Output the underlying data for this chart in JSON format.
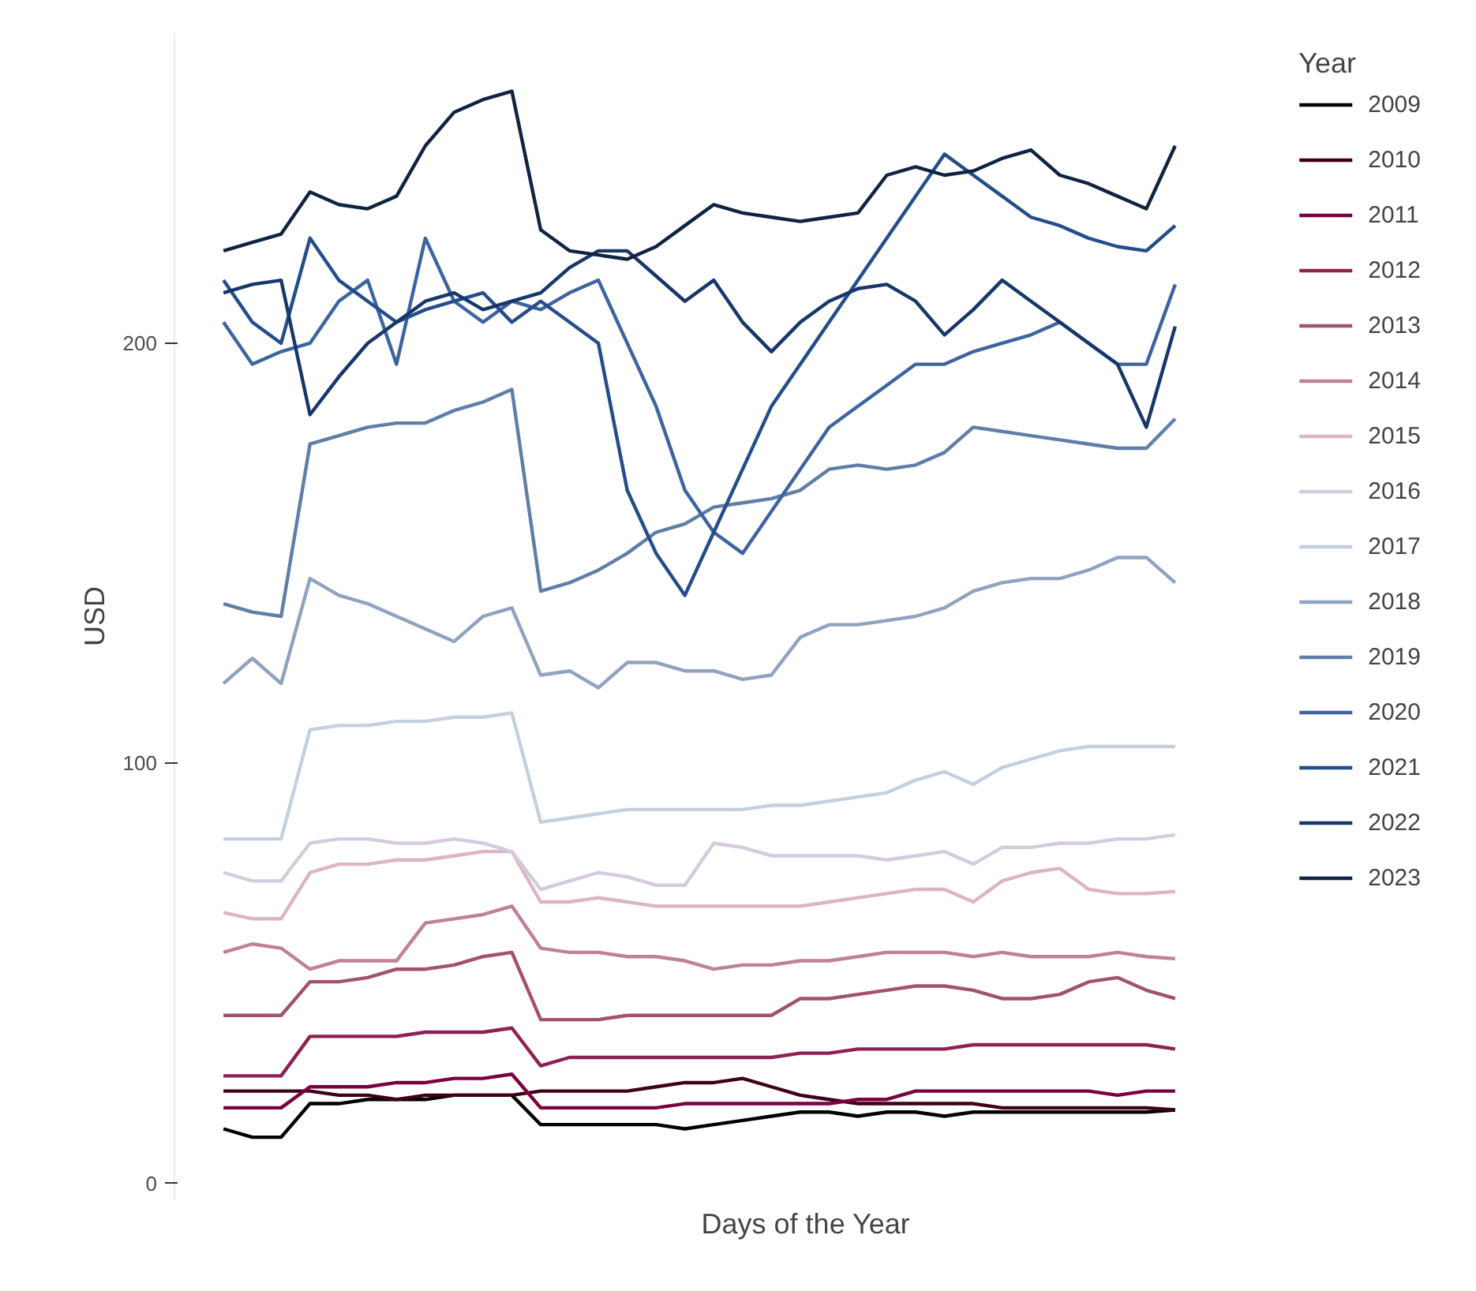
{
  "chart_data": {
    "type": "line",
    "xlabel": "Days of the Year",
    "ylabel": "USD",
    "legend_title": "Year",
    "legend": "right",
    "grid": false,
    "categories": [
      null,
      null,
      null,
      null,
      null,
      null,
      null,
      null,
      null,
      null,
      null,
      null,
      null,
      null,
      null,
      null,
      null,
      null,
      null,
      null,
      null,
      null,
      null,
      null,
      null,
      null,
      null,
      null,
      null,
      null,
      null,
      null,
      null,
      null
    ],
    "ylim": [
      -4,
      274
    ],
    "yticks": [
      0,
      100,
      200
    ],
    "series": [
      {
        "name": "2009",
        "color": "#000000",
        "values": [
          13,
          11,
          11,
          19,
          19,
          20,
          20,
          20,
          21,
          21,
          21,
          14,
          14,
          14,
          14,
          14,
          13,
          14,
          15,
          16,
          17,
          17,
          16,
          17,
          17,
          16,
          17,
          17,
          17,
          17,
          17,
          17,
          17,
          17.5
        ]
      },
      {
        "name": "2010",
        "color": "#3d0018",
        "values": [
          22,
          22,
          22,
          22,
          21,
          21,
          20,
          21,
          21,
          21,
          21,
          22,
          22,
          22,
          22,
          23,
          24,
          24,
          25,
          23,
          21,
          20,
          19,
          19,
          19,
          19,
          19,
          18,
          18,
          18,
          18,
          18,
          18,
          17.5
        ]
      },
      {
        "name": "2011",
        "color": "#7a0040",
        "values": [
          18,
          18,
          18,
          23,
          23,
          23,
          24,
          24,
          25,
          25,
          26,
          18,
          18,
          18,
          18,
          18,
          19,
          19,
          19,
          19,
          19,
          19,
          20,
          20,
          22,
          22,
          22,
          22,
          22,
          22,
          22,
          21,
          22,
          22
        ]
      },
      {
        "name": "2012",
        "color": "#8c2152",
        "values": [
          25.6,
          25.6,
          25.6,
          35,
          35,
          35,
          35,
          36,
          36,
          36,
          37,
          28,
          30,
          30,
          30,
          30,
          30,
          30,
          30,
          30,
          31,
          31,
          32,
          32,
          32,
          32,
          33,
          33,
          33,
          33,
          33,
          33,
          33,
          32
        ]
      },
      {
        "name": "2013",
        "color": "#a1526e",
        "values": [
          40,
          40,
          40,
          48,
          48,
          49,
          51,
          51,
          52,
          54,
          55,
          39,
          39,
          39,
          40,
          40,
          40,
          40,
          40,
          40,
          44,
          44,
          45,
          46,
          47,
          47,
          46,
          44,
          44,
          45,
          48,
          49,
          46,
          44
        ]
      },
      {
        "name": "2014",
        "color": "#c0809a",
        "values": [
          55,
          57,
          56,
          51,
          53,
          53,
          53,
          62,
          63,
          64,
          66,
          56,
          55,
          55,
          54,
          54,
          53,
          51,
          52,
          52,
          53,
          53,
          54,
          55,
          55,
          55,
          54,
          55,
          54,
          54,
          54,
          55,
          54,
          53.5
        ]
      },
      {
        "name": "2015",
        "color": "#dcb5c5",
        "values": [
          64.5,
          63,
          63,
          74,
          76,
          76,
          77,
          77,
          78,
          79,
          79,
          67,
          67,
          68,
          67,
          66,
          66,
          66,
          66,
          66,
          66,
          67,
          68,
          69,
          70,
          70,
          67,
          72,
          74,
          75,
          70,
          69,
          69,
          69.5
        ]
      },
      {
        "name": "2016",
        "color": "#d6cbdc",
        "values": [
          74,
          72,
          72,
          81,
          82,
          82,
          81,
          81,
          82,
          81,
          79,
          70,
          72,
          74,
          73,
          71,
          71,
          81,
          80,
          78,
          78,
          78,
          78,
          77,
          78,
          79,
          76,
          80,
          80,
          81,
          81,
          82,
          82,
          83
        ]
      },
      {
        "name": "2017",
        "color": "#c5d0df",
        "values": [
          82,
          82,
          82,
          108,
          109,
          109,
          110,
          110,
          111,
          111,
          112,
          86,
          87,
          88,
          89,
          89,
          89,
          89,
          89,
          90,
          90,
          91,
          92,
          93,
          96,
          98,
          95,
          99,
          101,
          103,
          104,
          104,
          104,
          104
        ]
      },
      {
        "name": "2018",
        "color": "#8fa3c0",
        "values": [
          119,
          125,
          119,
          144,
          140,
          138,
          135,
          132,
          129,
          135,
          137,
          121,
          122,
          118,
          124,
          124,
          122,
          122,
          120,
          121,
          130,
          133,
          133,
          134,
          135,
          137,
          141,
          143,
          144,
          144,
          146,
          149,
          149,
          143
        ]
      },
      {
        "name": "2019",
        "color": "#5f7ea8",
        "values": [
          138,
          136,
          135,
          176,
          178,
          180,
          181,
          181,
          184,
          186,
          189,
          141,
          143,
          146,
          150,
          155,
          157,
          161,
          162,
          163,
          165,
          170,
          171,
          170,
          171,
          174,
          180,
          179,
          178,
          177,
          176,
          175,
          175,
          182
        ]
      },
      {
        "name": "2020",
        "color": "#3e64a0",
        "values": [
          205,
          195,
          198,
          200,
          210,
          215,
          195,
          225,
          210,
          205,
          210,
          208,
          212,
          215,
          200,
          185,
          165,
          155,
          150,
          160,
          170,
          180,
          185,
          190,
          195,
          195,
          198,
          200,
          202,
          205,
          200,
          195,
          195,
          214
        ]
      },
      {
        "name": "2021",
        "color": "#244d89",
        "values": [
          215,
          205,
          200,
          225,
          215,
          210,
          205,
          208,
          210,
          212,
          205,
          210,
          205,
          200,
          165,
          150,
          140,
          155,
          170,
          185,
          195,
          205,
          215,
          225,
          235,
          245,
          240,
          235,
          230,
          228,
          225,
          223,
          222,
          228
        ]
      },
      {
        "name": "2022",
        "color": "#17366a",
        "values": [
          212,
          214,
          215,
          183,
          192,
          200,
          205,
          210,
          212,
          208,
          210,
          212,
          218,
          222,
          222,
          216,
          210,
          215,
          205,
          198,
          205,
          210,
          213,
          214,
          210,
          202,
          208,
          215,
          210,
          205,
          200,
          195,
          180,
          204
        ]
      },
      {
        "name": "2023",
        "color": "#0f2440",
        "values": [
          222,
          224,
          226,
          236,
          233,
          232,
          235,
          247,
          255,
          258,
          260,
          227,
          222,
          221,
          220,
          223,
          228,
          233,
          231,
          230,
          229,
          230,
          231,
          240,
          242,
          240,
          241,
          244,
          246,
          240,
          238,
          235,
          232,
          247
        ]
      }
    ]
  }
}
